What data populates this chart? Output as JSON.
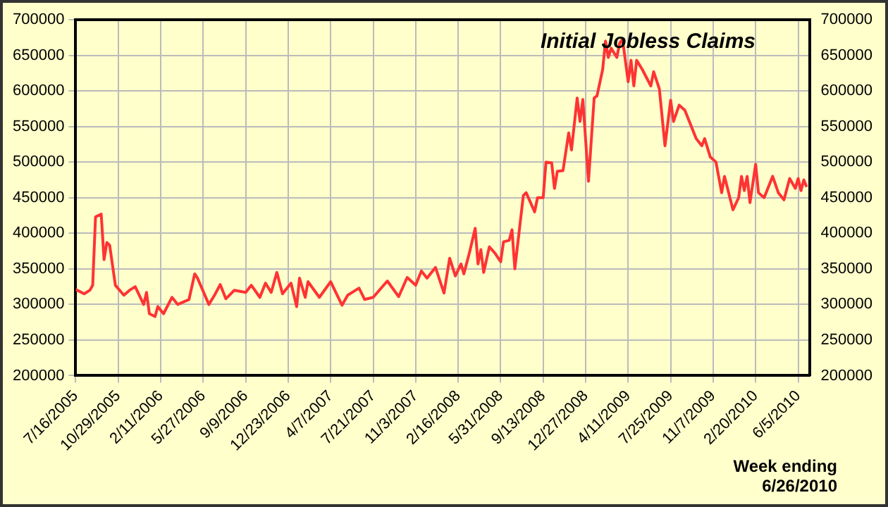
{
  "chart_data": {
    "type": "line",
    "title": "Initial Jobless Claims",
    "annotations": [
      "Week ending\n6/26/2010"
    ],
    "x": [
      "2005-07-16",
      "2005-08-06",
      "2005-08-20",
      "2005-08-27",
      "2005-09-03",
      "2005-09-17",
      "2005-09-24",
      "2005-10-01",
      "2005-10-08",
      "2005-10-22",
      "2005-11-12",
      "2005-11-26",
      "2005-12-10",
      "2005-12-31",
      "2006-01-07",
      "2006-01-14",
      "2006-01-28",
      "2006-02-04",
      "2006-02-18",
      "2006-03-11",
      "2006-03-25",
      "2006-04-22",
      "2006-05-06",
      "2006-05-13",
      "2006-06-10",
      "2006-06-24",
      "2006-07-08",
      "2006-07-22",
      "2006-08-12",
      "2006-09-09",
      "2006-09-23",
      "2006-10-14",
      "2006-10-28",
      "2006-11-11",
      "2006-11-25",
      "2006-12-09",
      "2006-12-30",
      "2007-01-13",
      "2007-01-20",
      "2007-02-03",
      "2007-02-10",
      "2007-03-10",
      "2007-04-07",
      "2007-05-05",
      "2007-05-19",
      "2007-06-16",
      "2007-06-30",
      "2007-07-21",
      "2007-08-25",
      "2007-09-22",
      "2007-10-13",
      "2007-11-03",
      "2007-11-17",
      "2007-12-01",
      "2007-12-22",
      "2008-01-12",
      "2008-01-26",
      "2008-02-09",
      "2008-02-23",
      "2008-03-01",
      "2008-03-15",
      "2008-03-29",
      "2008-04-05",
      "2008-04-12",
      "2008-04-19",
      "2008-05-03",
      "2008-05-17",
      "2008-05-31",
      "2008-06-07",
      "2008-06-21",
      "2008-06-28",
      "2008-07-05",
      "2008-07-26",
      "2008-08-02",
      "2008-08-23",
      "2008-08-30",
      "2008-09-13",
      "2008-09-20",
      "2008-10-04",
      "2008-10-11",
      "2008-10-18",
      "2008-11-01",
      "2008-11-15",
      "2008-11-22",
      "2008-12-06",
      "2008-12-13",
      "2008-12-20",
      "2009-01-03",
      "2009-01-17",
      "2009-01-24",
      "2009-02-07",
      "2009-02-14",
      "2009-02-21",
      "2009-02-28",
      "2009-03-14",
      "2009-03-21",
      "2009-03-28",
      "2009-04-11",
      "2009-04-18",
      "2009-04-25",
      "2009-05-02",
      "2009-05-16",
      "2009-06-06",
      "2009-06-13",
      "2009-06-27",
      "2009-07-11",
      "2009-07-25",
      "2009-08-01",
      "2009-08-15",
      "2009-08-29",
      "2009-09-12",
      "2009-09-26",
      "2009-10-10",
      "2009-10-17",
      "2009-10-31",
      "2009-11-14",
      "2009-11-28",
      "2009-12-05",
      "2009-12-26",
      "2010-01-09",
      "2010-01-16",
      "2010-01-23",
      "2010-01-30",
      "2010-02-06",
      "2010-02-20",
      "2010-02-27",
      "2010-03-13",
      "2010-04-03",
      "2010-04-17",
      "2010-05-01",
      "2010-05-15",
      "2010-05-29",
      "2010-06-05",
      "2010-06-12",
      "2010-06-19",
      "2010-06-26"
    ],
    "series": [
      {
        "color": "#ff3333",
        "values": [
          321000,
          315000,
          320000,
          327000,
          423000,
          427000,
          363000,
          387000,
          383000,
          327000,
          313000,
          320000,
          325000,
          300000,
          317000,
          287000,
          283000,
          297000,
          287000,
          310000,
          300000,
          307000,
          343000,
          337000,
          300000,
          313000,
          328000,
          308000,
          320000,
          317000,
          327000,
          310000,
          330000,
          317000,
          345000,
          315000,
          330000,
          297000,
          337000,
          310000,
          332000,
          310000,
          332000,
          299000,
          313000,
          323000,
          307000,
          310000,
          333000,
          311000,
          338000,
          327000,
          347000,
          337000,
          352000,
          316000,
          365000,
          340000,
          357000,
          343000,
          373000,
          407000,
          357000,
          377000,
          345000,
          381000,
          372000,
          360000,
          388000,
          390000,
          405000,
          350000,
          453000,
          457000,
          430000,
          450000,
          450000,
          500000,
          499000,
          463000,
          487000,
          488000,
          541000,
          517000,
          590000,
          557000,
          588000,
          473000,
          590000,
          593000,
          630000,
          670000,
          647000,
          660000,
          647000,
          667000,
          673000,
          613000,
          643000,
          607000,
          643000,
          630000,
          607000,
          627000,
          603000,
          523000,
          587000,
          557000,
          580000,
          573000,
          553000,
          533000,
          523000,
          533000,
          507000,
          500000,
          457000,
          480000,
          433000,
          450000,
          480000,
          460000,
          480000,
          443000,
          497000,
          457000,
          450000,
          480000,
          457000,
          447000,
          477000,
          463000,
          477000,
          460000,
          475000,
          465000
        ]
      }
    ],
    "xlim": [
      "2005-07-16",
      "2010-07-03"
    ],
    "xticks": [
      {
        "value": "2005-07-16",
        "label": "7/16/2005"
      },
      {
        "value": "2005-10-29",
        "label": "10/29/2005"
      },
      {
        "value": "2006-02-11",
        "label": "2/11/2006"
      },
      {
        "value": "2006-05-27",
        "label": "5/27/2006"
      },
      {
        "value": "2006-09-09",
        "label": "9/9/2006"
      },
      {
        "value": "2006-12-23",
        "label": "12/23/2006"
      },
      {
        "value": "2007-04-07",
        "label": "4/7/2007"
      },
      {
        "value": "2007-07-21",
        "label": "7/21/2007"
      },
      {
        "value": "2007-11-03",
        "label": "11/3/2007"
      },
      {
        "value": "2008-02-16",
        "label": "2/16/2008"
      },
      {
        "value": "2008-05-31",
        "label": "5/31/2008"
      },
      {
        "value": "2008-09-13",
        "label": "9/13/2008"
      },
      {
        "value": "2008-12-27",
        "label": "12/27/2008"
      },
      {
        "value": "2009-04-11",
        "label": "4/11/2009"
      },
      {
        "value": "2009-07-25",
        "label": "7/25/2009"
      },
      {
        "value": "2009-11-07",
        "label": "11/7/2009"
      },
      {
        "value": "2010-02-20",
        "label": "2/20/2010"
      },
      {
        "value": "2010-06-05",
        "label": "6/5/2010"
      }
    ],
    "ylim": [
      200000,
      700000
    ],
    "yticks": [
      200000,
      250000,
      300000,
      350000,
      400000,
      450000,
      500000,
      550000,
      600000,
      650000,
      700000
    ],
    "y2lim": [
      200000,
      700000
    ],
    "y2ticks": [
      200000,
      250000,
      300000,
      350000,
      400000,
      450000,
      500000,
      550000,
      600000,
      650000,
      700000
    ],
    "grid": true,
    "legend": false,
    "marker": "none",
    "line_style": "solid"
  }
}
